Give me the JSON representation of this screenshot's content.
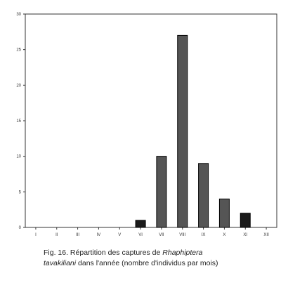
{
  "chart_data": {
    "type": "bar",
    "categories": [
      "I",
      "II",
      "III",
      "IV",
      "V",
      "VI",
      "VII",
      "VIII",
      "IX",
      "X",
      "XI",
      "XII"
    ],
    "values": [
      0,
      0,
      0,
      0,
      0,
      1,
      10,
      27,
      9,
      4,
      2,
      0
    ],
    "ylim": [
      0,
      30
    ],
    "yticks": [
      0,
      5,
      10,
      15,
      20,
      25,
      30
    ],
    "grid": false,
    "colors": {
      "dark": "#1a1a1a",
      "gray": "#555555",
      "axis": "#333333"
    },
    "bar_shades": [
      "dark",
      "dark",
      "dark",
      "dark",
      "dark",
      "dark",
      "gray",
      "gray",
      "gray",
      "gray",
      "dark",
      "dark"
    ]
  },
  "caption": {
    "prefix": "Fig. 16.  Répartition des captures de ",
    "species_line1": "Rhaphiptera",
    "species_line2": "tavakiliani",
    "suffix": " dans l'année (nombre d'individus par mois)"
  }
}
